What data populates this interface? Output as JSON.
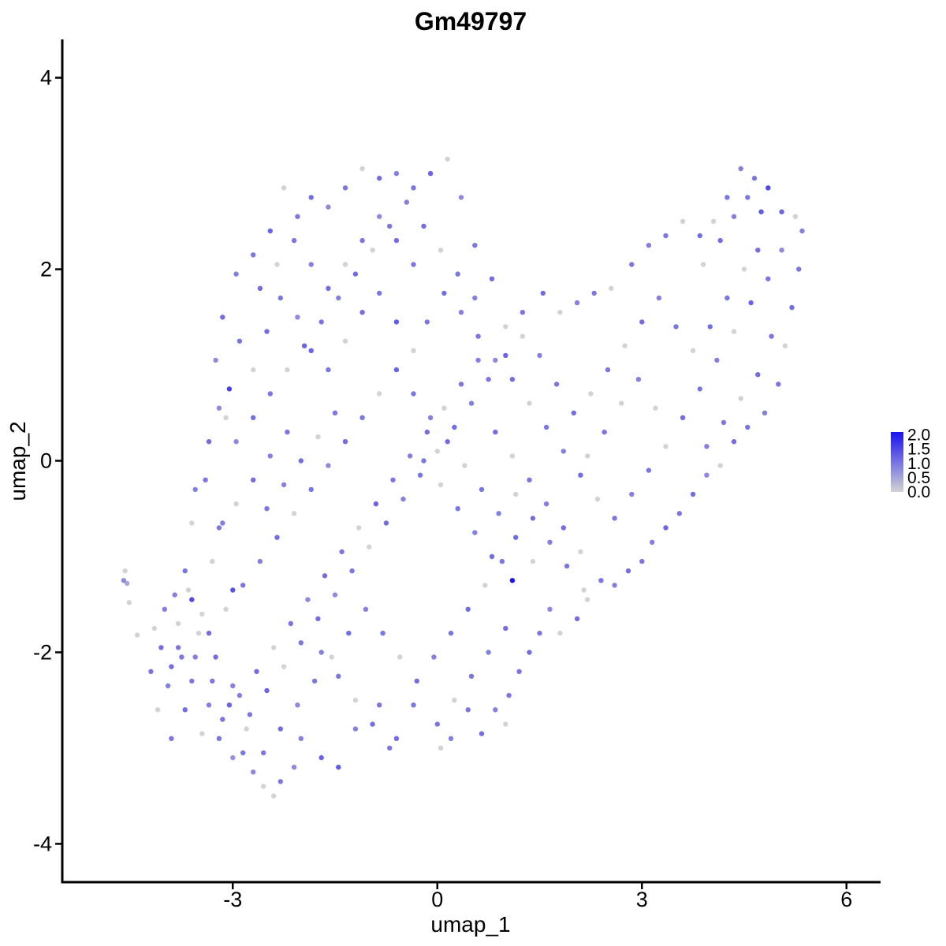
{
  "chart_data": {
    "type": "scatter",
    "title": "Gm49797",
    "xlabel": "umap_1",
    "ylabel": "umap_2",
    "xlim": [
      -5.5,
      6.5
    ],
    "ylim": [
      -4.4,
      4.4
    ],
    "x_ticks": [
      {
        "value": -3,
        "label": "-3"
      },
      {
        "value": 0,
        "label": "0"
      },
      {
        "value": 3,
        "label": "3"
      },
      {
        "value": 6,
        "label": "6"
      }
    ],
    "y_ticks": [
      {
        "value": -4,
        "label": "-4"
      },
      {
        "value": -2,
        "label": "-2"
      },
      {
        "value": 0,
        "label": "0"
      },
      {
        "value": 2,
        "label": "2"
      },
      {
        "value": 4,
        "label": "4"
      }
    ],
    "grid": false,
    "legend": {
      "position": "right",
      "type": "colorbar",
      "min": 0,
      "max": 2.1,
      "breaks": [
        "2.0",
        "1.5",
        "1.0",
        "0.5",
        "0.0"
      ],
      "low_color": "#d3d3d3",
      "high_color": "#1a12f0"
    },
    "point_color_low": "#d3d3d3",
    "point_color_high": "#1a12f0",
    "points": [
      [
        -4.6,
        -1.25,
        0.8
      ],
      [
        -4.55,
        -1.28,
        0.5
      ],
      [
        -4.58,
        -1.15,
        0
      ],
      [
        -4.52,
        -1.48,
        0
      ],
      [
        -4.4,
        -1.82,
        0
      ],
      [
        -4.2,
        -2.2,
        1
      ],
      [
        -4.1,
        -2.6,
        0
      ],
      [
        -3.9,
        -2.9,
        1
      ],
      [
        -4.05,
        -1.95,
        1.1
      ],
      [
        -3.8,
        -1.7,
        0
      ],
      [
        -3.85,
        -1.4,
        0.9
      ],
      [
        -3.7,
        -1.15,
        1
      ],
      [
        -3.6,
        -0.65,
        0
      ],
      [
        -3.55,
        -0.3,
        0.9
      ],
      [
        -3.4,
        -0.2,
        1
      ],
      [
        -3.35,
        0.2,
        1.1
      ],
      [
        -3.2,
        0.55,
        0.8
      ],
      [
        -3.05,
        0.75,
        1.6
      ],
      [
        -3.1,
        0.45,
        0
      ],
      [
        -3.15,
        -0.65,
        0.9
      ],
      [
        -3.3,
        -1.05,
        0
      ],
      [
        -3.0,
        -1.35,
        1.4
      ],
      [
        -3.6,
        -1.45,
        1.5
      ],
      [
        -3.45,
        -1.6,
        0
      ],
      [
        -3.6,
        -2.3,
        1
      ],
      [
        -3.35,
        -2.55,
        0.9
      ],
      [
        -3.2,
        -2.9,
        1
      ],
      [
        -3.0,
        -3.1,
        0.7
      ],
      [
        -2.85,
        -3.05,
        1
      ],
      [
        -2.7,
        -3.25,
        0.8
      ],
      [
        -2.55,
        -3.4,
        0
      ],
      [
        -2.4,
        -3.5,
        0
      ],
      [
        -2.3,
        -3.35,
        1
      ],
      [
        -2.1,
        -3.2,
        0.8
      ],
      [
        -2.0,
        -2.9,
        0.9
      ],
      [
        -1.7,
        -3.1,
        1.2
      ],
      [
        -1.45,
        -3.2,
        1.3
      ],
      [
        -1.2,
        -2.8,
        0.9
      ],
      [
        -0.85,
        -2.55,
        1
      ],
      [
        -0.6,
        -2.9,
        1.1
      ],
      [
        -0.35,
        -2.55,
        1
      ],
      [
        0.05,
        -3.0,
        0
      ],
      [
        0.2,
        -2.9,
        0.9
      ],
      [
        0.45,
        -2.6,
        1
      ],
      [
        0.65,
        -2.85,
        1.1
      ],
      [
        0.85,
        -2.6,
        0.9
      ],
      [
        1.0,
        -2.75,
        0
      ],
      [
        1.05,
        -2.45,
        1
      ],
      [
        1.2,
        -2.2,
        1
      ],
      [
        1.35,
        -2.0,
        1.1
      ],
      [
        1.5,
        -1.8,
        1
      ],
      [
        1.65,
        -1.55,
        0.8
      ],
      [
        1.8,
        -1.8,
        0
      ],
      [
        2.05,
        -1.65,
        1.1
      ],
      [
        2.2,
        -1.45,
        0
      ],
      [
        2.4,
        -1.25,
        1
      ],
      [
        2.6,
        -1.3,
        0.9
      ],
      [
        2.8,
        -1.15,
        1.1
      ],
      [
        3.0,
        -1.05,
        1
      ],
      [
        3.15,
        -0.85,
        0.9
      ],
      [
        3.35,
        -0.7,
        1.2
      ],
      [
        3.55,
        -0.55,
        1
      ],
      [
        3.75,
        -0.35,
        1.1
      ],
      [
        3.95,
        -0.15,
        0.8
      ],
      [
        4.15,
        -0.05,
        0
      ],
      [
        4.35,
        0.2,
        1.1
      ],
      [
        4.55,
        0.35,
        1
      ],
      [
        4.8,
        0.5,
        0.9
      ],
      [
        5.0,
        0.8,
        1
      ],
      [
        5.1,
        1.2,
        0
      ],
      [
        5.2,
        1.6,
        1.1
      ],
      [
        5.3,
        2.0,
        1
      ],
      [
        5.35,
        2.4,
        0.9
      ],
      [
        5.25,
        2.55,
        0
      ],
      [
        5.05,
        2.6,
        1.2
      ],
      [
        4.85,
        2.85,
        1.5
      ],
      [
        4.65,
        2.95,
        1
      ],
      [
        4.45,
        3.05,
        0.9
      ],
      [
        4.25,
        2.75,
        1
      ],
      [
        4.05,
        2.5,
        0
      ],
      [
        3.85,
        2.35,
        1.1
      ],
      [
        3.6,
        2.5,
        0
      ],
      [
        3.35,
        2.35,
        1
      ],
      [
        3.1,
        2.25,
        0.9
      ],
      [
        2.85,
        2.05,
        1
      ],
      [
        2.55,
        1.8,
        0
      ],
      [
        2.3,
        1.75,
        1
      ],
      [
        2.05,
        1.65,
        0.9
      ],
      [
        1.8,
        1.55,
        0
      ],
      [
        1.55,
        1.75,
        1.1
      ],
      [
        1.25,
        1.55,
        1
      ],
      [
        1.0,
        1.4,
        0
      ],
      [
        0.8,
        1.9,
        1.1
      ],
      [
        0.55,
        2.25,
        1
      ],
      [
        0.35,
        2.75,
        0.8
      ],
      [
        0.15,
        3.15,
        0
      ],
      [
        -0.1,
        3.0,
        1.2
      ],
      [
        -0.35,
        2.85,
        1
      ],
      [
        -0.6,
        3.0,
        0.9
      ],
      [
        -0.85,
        2.95,
        1.1
      ],
      [
        -1.1,
        3.05,
        0
      ],
      [
        -1.35,
        2.85,
        1
      ],
      [
        -1.6,
        2.65,
        0.8
      ],
      [
        -1.85,
        2.75,
        1.1
      ],
      [
        -2.05,
        2.55,
        1
      ],
      [
        -2.25,
        2.85,
        0
      ],
      [
        -2.45,
        2.4,
        1.2
      ],
      [
        -2.7,
        2.15,
        1
      ],
      [
        -2.95,
        1.95,
        0.9
      ],
      [
        -3.15,
        1.5,
        1.1
      ],
      [
        -3.25,
        1.05,
        0.8
      ],
      [
        -2.9,
        1.25,
        1
      ],
      [
        -2.7,
        0.95,
        0
      ],
      [
        -2.5,
        1.35,
        1.1
      ],
      [
        -2.3,
        1.7,
        1
      ],
      [
        -2.05,
        1.5,
        0.8
      ],
      [
        -1.85,
        1.15,
        1.2
      ],
      [
        -1.6,
        0.95,
        1
      ],
      [
        -1.35,
        1.25,
        0
      ],
      [
        -1.1,
        1.55,
        1.1
      ],
      [
        -0.85,
        1.75,
        1
      ],
      [
        -0.6,
        1.45,
        1.3
      ],
      [
        -0.35,
        1.15,
        0
      ],
      [
        -0.15,
        1.45,
        1
      ],
      [
        0.1,
        1.75,
        1.1
      ],
      [
        0.35,
        1.55,
        0.9
      ],
      [
        0.6,
        1.3,
        1
      ],
      [
        0.85,
        1.05,
        0.8
      ],
      [
        1.1,
        0.85,
        1.1
      ],
      [
        1.35,
        0.6,
        0
      ],
      [
        1.6,
        0.35,
        1
      ],
      [
        1.85,
        0.1,
        0.9
      ],
      [
        2.1,
        -0.15,
        1.1
      ],
      [
        2.35,
        -0.4,
        0
      ],
      [
        2.6,
        -0.6,
        1
      ],
      [
        2.85,
        -0.35,
        0.9
      ],
      [
        3.1,
        -0.1,
        1
      ],
      [
        3.35,
        0.15,
        0
      ],
      [
        3.6,
        0.45,
        1.1
      ],
      [
        3.85,
        0.75,
        1
      ],
      [
        4.1,
        1.05,
        0.9
      ],
      [
        4.35,
        1.35,
        0
      ],
      [
        4.6,
        1.65,
        1.2
      ],
      [
        4.85,
        1.9,
        1
      ],
      [
        5.05,
        2.2,
        0.8
      ],
      [
        4.7,
        2.2,
        1.1
      ],
      [
        4.5,
        2.0,
        0
      ],
      [
        4.25,
        1.7,
        1
      ],
      [
        4.0,
        1.4,
        1.1
      ],
      [
        3.75,
        1.15,
        0
      ],
      [
        3.5,
        1.4,
        1
      ],
      [
        3.25,
        1.7,
        0.9
      ],
      [
        3.0,
        1.45,
        1.1
      ],
      [
        2.75,
        1.2,
        0
      ],
      [
        2.5,
        0.95,
        1
      ],
      [
        2.25,
        0.7,
        0
      ],
      [
        2.0,
        0.5,
        1.1
      ],
      [
        1.75,
        0.8,
        1
      ],
      [
        1.5,
        1.1,
        0.9
      ],
      [
        1.25,
        1.3,
        0
      ],
      [
        1.0,
        1.1,
        1.2
      ],
      [
        0.75,
        0.85,
        1
      ],
      [
        0.5,
        0.6,
        0.9
      ],
      [
        0.25,
        0.35,
        1.1
      ],
      [
        0.0,
        0.1,
        0
      ],
      [
        -0.25,
        -0.15,
        1
      ],
      [
        -0.5,
        -0.4,
        0.9
      ],
      [
        -0.75,
        -0.65,
        1.1
      ],
      [
        -1.0,
        -0.9,
        0
      ],
      [
        -1.25,
        -1.15,
        1
      ],
      [
        -1.5,
        -1.4,
        0.8
      ],
      [
        -1.75,
        -1.65,
        1.1
      ],
      [
        -2.0,
        -1.9,
        1
      ],
      [
        -2.25,
        -2.15,
        0
      ],
      [
        -2.5,
        -2.4,
        1.2
      ],
      [
        -2.75,
        -2.65,
        1
      ],
      [
        -3.0,
        -2.35,
        0.9
      ],
      [
        -3.25,
        -2.05,
        1.1
      ],
      [
        -3.5,
        -1.8,
        0
      ],
      [
        -3.75,
        -2.05,
        1
      ],
      [
        -3.95,
        -2.35,
        0.9
      ],
      [
        -3.7,
        -2.6,
        1.1
      ],
      [
        -3.45,
        -2.85,
        0
      ],
      [
        -3.15,
        -2.7,
        1
      ],
      [
        -2.9,
        -2.45,
        0.9
      ],
      [
        -2.65,
        -2.2,
        1.1
      ],
      [
        -2.4,
        -1.95,
        0
      ],
      [
        -2.15,
        -1.7,
        1
      ],
      [
        -1.9,
        -1.45,
        0.8
      ],
      [
        -1.65,
        -1.2,
        1.1
      ],
      [
        -1.4,
        -0.95,
        1
      ],
      [
        -1.15,
        -0.7,
        0
      ],
      [
        -0.9,
        -0.45,
        1.2
      ],
      [
        -0.65,
        -0.2,
        1
      ],
      [
        -0.4,
        0.05,
        0.9
      ],
      [
        -0.15,
        0.3,
        1.1
      ],
      [
        0.1,
        0.55,
        0
      ],
      [
        0.35,
        0.8,
        1
      ],
      [
        0.6,
        1.05,
        0.9
      ],
      [
        0.85,
        0.3,
        1.1
      ],
      [
        1.1,
        0.05,
        0
      ],
      [
        1.35,
        -0.2,
        1
      ],
      [
        1.6,
        -0.45,
        0.9
      ],
      [
        1.85,
        -0.7,
        1.1
      ],
      [
        2.1,
        -0.95,
        0
      ],
      [
        1.1,
        -1.25,
        2.1
      ],
      [
        0.95,
        -1.05,
        1
      ],
      [
        0.7,
        -1.3,
        0
      ],
      [
        0.45,
        -1.55,
        1.1
      ],
      [
        0.2,
        -1.8,
        1
      ],
      [
        -0.05,
        -2.05,
        0.9
      ],
      [
        -0.3,
        -2.3,
        1.1
      ],
      [
        -0.55,
        -2.05,
        0
      ],
      [
        -0.8,
        -1.8,
        1
      ],
      [
        -1.05,
        -1.55,
        0.9
      ],
      [
        -1.3,
        -1.8,
        1.1
      ],
      [
        -1.55,
        -2.05,
        0
      ],
      [
        -1.8,
        -2.3,
        1
      ],
      [
        -2.05,
        -2.55,
        0.8
      ],
      [
        -2.3,
        -2.8,
        1.1
      ],
      [
        -2.55,
        -3.05,
        1
      ],
      [
        -2.8,
        -2.8,
        0
      ],
      [
        -3.05,
        -2.55,
        1.2
      ],
      [
        -3.3,
        -2.3,
        1
      ],
      [
        -3.55,
        -2.05,
        0.9
      ],
      [
        -3.35,
        -1.8,
        1.1
      ],
      [
        -3.1,
        -1.55,
        0
      ],
      [
        -2.85,
        -1.3,
        1
      ],
      [
        -2.6,
        -1.05,
        0.9
      ],
      [
        -2.35,
        -0.8,
        1.1
      ],
      [
        -2.1,
        -0.55,
        0
      ],
      [
        -1.85,
        -0.3,
        1
      ],
      [
        -1.6,
        -0.05,
        0.8
      ],
      [
        -1.35,
        0.2,
        1.1
      ],
      [
        -1.1,
        0.45,
        1
      ],
      [
        -0.85,
        0.7,
        0
      ],
      [
        -0.6,
        0.95,
        1.2
      ],
      [
        -0.35,
        0.7,
        1
      ],
      [
        -0.1,
        0.45,
        0.9
      ],
      [
        0.15,
        0.2,
        1.1
      ],
      [
        0.4,
        -0.05,
        0
      ],
      [
        0.65,
        -0.3,
        1
      ],
      [
        0.9,
        -0.55,
        0.9
      ],
      [
        1.15,
        -0.8,
        1.1
      ],
      [
        1.4,
        -1.05,
        0
      ],
      [
        -2.2,
        0.3,
        1
      ],
      [
        -2.45,
        0.05,
        0.9
      ],
      [
        -2.7,
        -0.2,
        1.1
      ],
      [
        -2.95,
        -0.45,
        0
      ],
      [
        -3.2,
        -0.7,
        1
      ],
      [
        -2.95,
        0.2,
        0.8
      ],
      [
        -2.7,
        0.45,
        1.1
      ],
      [
        -2.45,
        0.7,
        1
      ],
      [
        -2.2,
        0.95,
        0
      ],
      [
        -1.95,
        1.2,
        1.2
      ],
      [
        -1.7,
        1.45,
        1
      ],
      [
        -1.45,
        1.7,
        0.9
      ],
      [
        -1.2,
        1.95,
        1.1
      ],
      [
        -0.95,
        2.2,
        0
      ],
      [
        -0.7,
        2.45,
        1
      ],
      [
        -0.45,
        2.7,
        0.9
      ],
      [
        -0.2,
        2.45,
        1.1
      ],
      [
        0.05,
        2.2,
        0
      ],
      [
        0.3,
        1.95,
        1
      ],
      [
        0.55,
        1.7,
        0.9
      ],
      [
        -2.6,
        1.8,
        1.1
      ],
      [
        -2.35,
        2.05,
        0
      ],
      [
        -2.1,
        2.3,
        1
      ],
      [
        -1.85,
        2.05,
        0.9
      ],
      [
        -1.6,
        1.8,
        1.1
      ],
      [
        -1.35,
        2.05,
        0
      ],
      [
        -1.1,
        2.3,
        1
      ],
      [
        -0.85,
        2.55,
        0.8
      ],
      [
        -0.6,
        2.3,
        1.1
      ],
      [
        -0.35,
        2.05,
        1
      ],
      [
        4.7,
        0.9,
        1.1
      ],
      [
        4.45,
        0.65,
        0
      ],
      [
        4.2,
        0.4,
        1
      ],
      [
        3.95,
        0.15,
        0.9
      ],
      [
        4.9,
        1.3,
        1
      ],
      [
        4.75,
        2.6,
        1.3
      ],
      [
        4.55,
        2.75,
        1
      ],
      [
        4.35,
        2.55,
        0.9
      ],
      [
        4.15,
        2.3,
        1.1
      ],
      [
        3.9,
        2.05,
        0
      ],
      [
        2.7,
        0.6,
        0
      ],
      [
        2.45,
        0.3,
        1
      ],
      [
        2.2,
        0.05,
        0
      ],
      [
        2.95,
        0.85,
        0.9
      ],
      [
        3.2,
        0.55,
        0
      ],
      [
        1.9,
        -1.1,
        1
      ],
      [
        2.15,
        -1.35,
        0
      ],
      [
        1.65,
        -0.85,
        0.9
      ],
      [
        1.4,
        -0.6,
        1.1
      ],
      [
        1.15,
        -0.35,
        0
      ],
      [
        0.5,
        -2.25,
        1
      ],
      [
        0.75,
        -2.0,
        0.9
      ],
      [
        1.0,
        -1.75,
        1.1
      ],
      [
        0.25,
        -2.5,
        0
      ],
      [
        0.0,
        -2.75,
        1
      ],
      [
        -0.95,
        -2.75,
        1.1
      ],
      [
        -1.2,
        -2.5,
        0
      ],
      [
        -1.45,
        -2.25,
        1
      ],
      [
        -1.7,
        -2.0,
        0.9
      ],
      [
        -0.7,
        -3.0,
        1
      ],
      [
        -4.0,
        -1.55,
        0.9
      ],
      [
        -3.8,
        -1.95,
        1
      ],
      [
        -3.65,
        -1.35,
        0
      ],
      [
        -3.9,
        -2.15,
        1.1
      ],
      [
        -4.15,
        -1.75,
        0
      ],
      [
        -2.5,
        -0.5,
        1
      ],
      [
        -2.25,
        -0.25,
        0.9
      ],
      [
        -2.0,
        0.0,
        1.1
      ],
      [
        -1.75,
        0.25,
        0
      ],
      [
        -1.5,
        0.5,
        1
      ],
      [
        0.3,
        -0.5,
        1
      ],
      [
        0.55,
        -0.75,
        0.9
      ],
      [
        0.8,
        -1.0,
        1.1
      ],
      [
        0.05,
        -0.25,
        0
      ],
      [
        -0.2,
        0.0,
        1
      ]
    ]
  }
}
